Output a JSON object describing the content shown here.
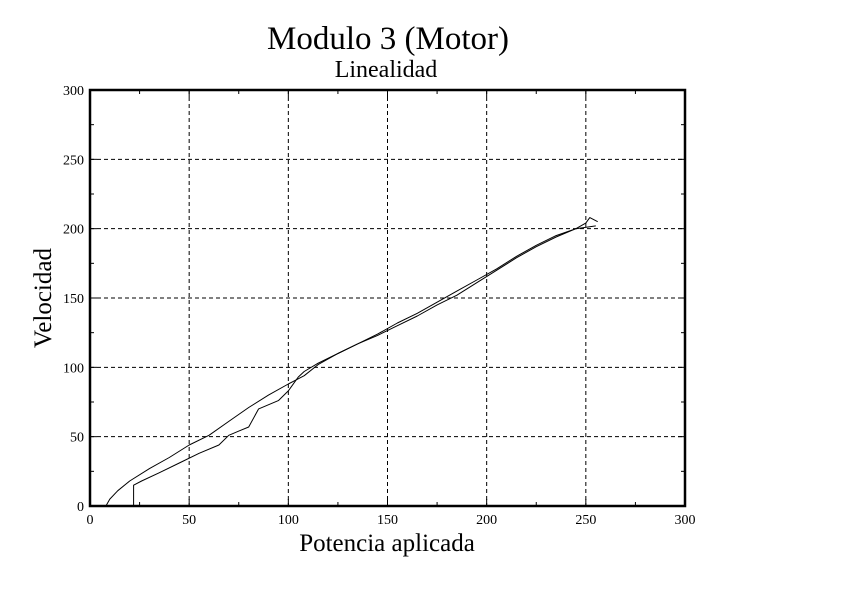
{
  "chart_data": {
    "type": "line",
    "title": "Modulo 3 (Motor)",
    "subtitle": "Linealidad",
    "xlabel": "Potencia aplicada",
    "ylabel": "Velocidad",
    "xlim": [
      0,
      300
    ],
    "ylim": [
      0,
      300
    ],
    "xticks": [
      0,
      50,
      100,
      150,
      200,
      250,
      300
    ],
    "yticks": [
      0,
      50,
      100,
      150,
      200,
      250,
      300
    ],
    "grid": true,
    "series": [
      {
        "values": [
          [
            22,
            0
          ],
          [
            22,
            15
          ],
          [
            26,
            18
          ],
          [
            35,
            24
          ],
          [
            45,
            31
          ],
          [
            55,
            38
          ],
          [
            65,
            44
          ],
          [
            70,
            51
          ],
          [
            75,
            54
          ],
          [
            80,
            57
          ],
          [
            85,
            70
          ],
          [
            95,
            76
          ],
          [
            100,
            83
          ],
          [
            105,
            93
          ],
          [
            108,
            97
          ],
          [
            115,
            103
          ],
          [
            125,
            110
          ],
          [
            135,
            117
          ],
          [
            145,
            123
          ],
          [
            155,
            130
          ],
          [
            165,
            137
          ],
          [
            175,
            145
          ],
          [
            185,
            152
          ],
          [
            195,
            161
          ],
          [
            205,
            170
          ],
          [
            215,
            179
          ],
          [
            225,
            187
          ],
          [
            235,
            194
          ],
          [
            245,
            200
          ],
          [
            255,
            202
          ]
        ]
      },
      {
        "values": [
          [
            8,
            0
          ],
          [
            10,
            5
          ],
          [
            14,
            11
          ],
          [
            20,
            18
          ],
          [
            30,
            27
          ],
          [
            40,
            35
          ],
          [
            50,
            44
          ],
          [
            60,
            51
          ],
          [
            70,
            61
          ],
          [
            80,
            71
          ],
          [
            90,
            80
          ],
          [
            100,
            88
          ],
          [
            108,
            94
          ],
          [
            115,
            102
          ],
          [
            125,
            110
          ],
          [
            135,
            117
          ],
          [
            145,
            124
          ],
          [
            155,
            132
          ],
          [
            165,
            139
          ],
          [
            175,
            147
          ],
          [
            185,
            155
          ],
          [
            195,
            163
          ],
          [
            205,
            171
          ],
          [
            215,
            180
          ],
          [
            225,
            188
          ],
          [
            235,
            195
          ],
          [
            245,
            200
          ],
          [
            250,
            204
          ],
          [
            252,
            208
          ],
          [
            256,
            205
          ]
        ]
      }
    ]
  }
}
